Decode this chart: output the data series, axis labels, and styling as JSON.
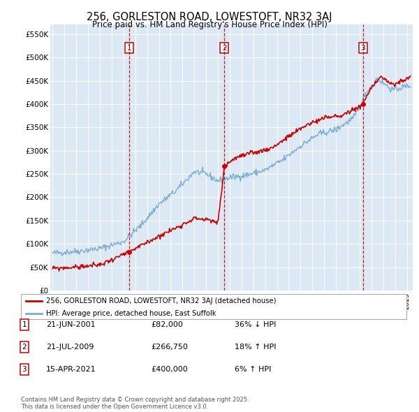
{
  "title": "256, GORLESTON ROAD, LOWESTOFT, NR32 3AJ",
  "subtitle": "Price paid vs. HM Land Registry's House Price Index (HPI)",
  "ylabel_ticks": [
    "£0",
    "£50K",
    "£100K",
    "£150K",
    "£200K",
    "£250K",
    "£300K",
    "£350K",
    "£400K",
    "£450K",
    "£500K",
    "£550K"
  ],
  "ylim": [
    0,
    570000
  ],
  "xlim_start": 1994.8,
  "xlim_end": 2025.5,
  "background_color": "#ffffff",
  "plot_bg_color": "#dce9f5",
  "grid_color": "#ffffff",
  "legend_label_red": "256, GORLESTON ROAD, LOWESTOFT, NR32 3AJ (detached house)",
  "legend_label_blue": "HPI: Average price, detached house, East Suffolk",
  "sale_dates": [
    2001.47,
    2009.55,
    2021.29
  ],
  "sale_prices": [
    82000,
    266750,
    400000
  ],
  "sale_labels": [
    "1",
    "2",
    "3"
  ],
  "sale_info": [
    {
      "label": "1",
      "date": "21-JUN-2001",
      "price": "£82,000",
      "pct": "36% ↓ HPI"
    },
    {
      "label": "2",
      "date": "21-JUL-2009",
      "price": "£266,750",
      "pct": "18% ↑ HPI"
    },
    {
      "label": "3",
      "date": "15-APR-2021",
      "price": "£400,000",
      "pct": "6% ↑ HPI"
    }
  ],
  "footer": "Contains HM Land Registry data © Crown copyright and database right 2025.\nThis data is licensed under the Open Government Licence v3.0.",
  "red_color": "#cc0000",
  "blue_color": "#7aaed4",
  "vline_color": "#cc0000",
  "box_color": "#cc0000",
  "hpi_segments": [
    [
      1995.0,
      80000
    ],
    [
      1997.0,
      84000
    ],
    [
      1999.0,
      90000
    ],
    [
      2001.0,
      105000
    ],
    [
      2002.5,
      140000
    ],
    [
      2004.0,
      185000
    ],
    [
      2005.5,
      215000
    ],
    [
      2007.0,
      255000
    ],
    [
      2008.0,
      250000
    ],
    [
      2009.0,
      235000
    ],
    [
      2010.0,
      242000
    ],
    [
      2011.5,
      248000
    ],
    [
      2013.0,
      258000
    ],
    [
      2014.5,
      280000
    ],
    [
      2016.0,
      310000
    ],
    [
      2017.5,
      335000
    ],
    [
      2019.0,
      345000
    ],
    [
      2020.5,
      370000
    ],
    [
      2021.5,
      420000
    ],
    [
      2022.5,
      455000
    ],
    [
      2023.0,
      445000
    ],
    [
      2023.8,
      430000
    ],
    [
      2024.5,
      435000
    ],
    [
      2025.3,
      440000
    ]
  ],
  "prop_segments": [
    [
      1995.0,
      47000
    ],
    [
      1997.0,
      50000
    ],
    [
      1999.0,
      55000
    ],
    [
      2001.47,
      82000
    ],
    [
      2003.5,
      110000
    ],
    [
      2005.5,
      135000
    ],
    [
      2007.0,
      155000
    ],
    [
      2008.0,
      152000
    ],
    [
      2009.0,
      145000
    ],
    [
      2009.55,
      266750
    ],
    [
      2010.5,
      285000
    ],
    [
      2012.0,
      295000
    ],
    [
      2013.5,
      305000
    ],
    [
      2015.0,
      330000
    ],
    [
      2016.5,
      355000
    ],
    [
      2018.0,
      370000
    ],
    [
      2019.5,
      375000
    ],
    [
      2021.0,
      395000
    ],
    [
      2021.29,
      400000
    ],
    [
      2022.0,
      435000
    ],
    [
      2022.8,
      460000
    ],
    [
      2023.5,
      445000
    ],
    [
      2024.0,
      440000
    ],
    [
      2024.5,
      450000
    ],
    [
      2025.3,
      455000
    ]
  ]
}
